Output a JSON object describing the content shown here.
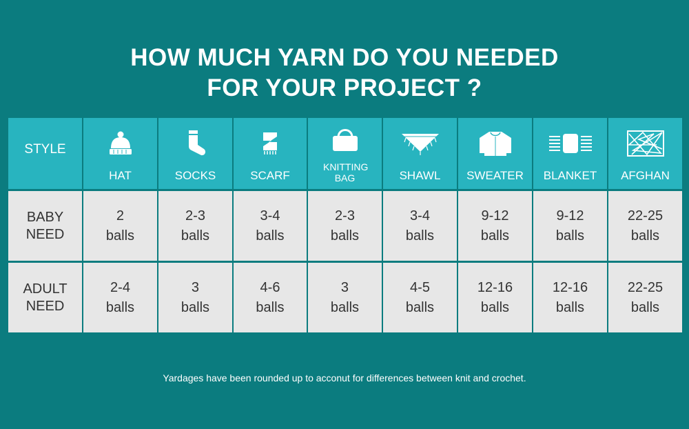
{
  "title": {
    "line1": "HOW MUCH YARN DO YOU NEEDED",
    "line2": "FOR YOUR PROJECT ?"
  },
  "header": {
    "style_label": "STYLE",
    "columns": [
      {
        "label": "HAT",
        "icon": "hat-icon"
      },
      {
        "label": "SOCKS",
        "icon": "socks-icon"
      },
      {
        "label": "SCARF",
        "icon": "scarf-icon"
      },
      {
        "label": "KNITTING BAG",
        "icon": "knitting-bag-icon"
      },
      {
        "label": "SHAWL",
        "icon": "shawl-icon"
      },
      {
        "label": "SWEATER",
        "icon": "sweater-icon"
      },
      {
        "label": "BLANKET",
        "icon": "blanket-icon"
      },
      {
        "label": "AFGHAN",
        "icon": "afghan-icon"
      }
    ]
  },
  "rows": [
    {
      "label": [
        "BABY",
        "NEED"
      ],
      "values": [
        [
          "2",
          "balls"
        ],
        [
          "2-3",
          "balls"
        ],
        [
          "3-4",
          "balls"
        ],
        [
          "2-3",
          "balls"
        ],
        [
          "3-4",
          "balls"
        ],
        [
          "9-12",
          "balls"
        ],
        [
          "9-12",
          "balls"
        ],
        [
          "22-25",
          "balls"
        ]
      ]
    },
    {
      "label": [
        "ADULT",
        "NEED"
      ],
      "values": [
        [
          "2-4",
          "balls"
        ],
        [
          "3",
          "balls"
        ],
        [
          "4-6",
          "balls"
        ],
        [
          "3",
          "balls"
        ],
        [
          "4-5",
          "balls"
        ],
        [
          "12-16",
          "balls"
        ],
        [
          "12-16",
          "balls"
        ],
        [
          "22-25",
          "balls"
        ]
      ]
    }
  ],
  "footnote": "Yardages have been rounded up to acconut for differences between knit and crochet.",
  "colors": {
    "background": "#0b7c7f",
    "header": "#28b4bf",
    "body": "#e7e7e7",
    "text": "#333333"
  }
}
